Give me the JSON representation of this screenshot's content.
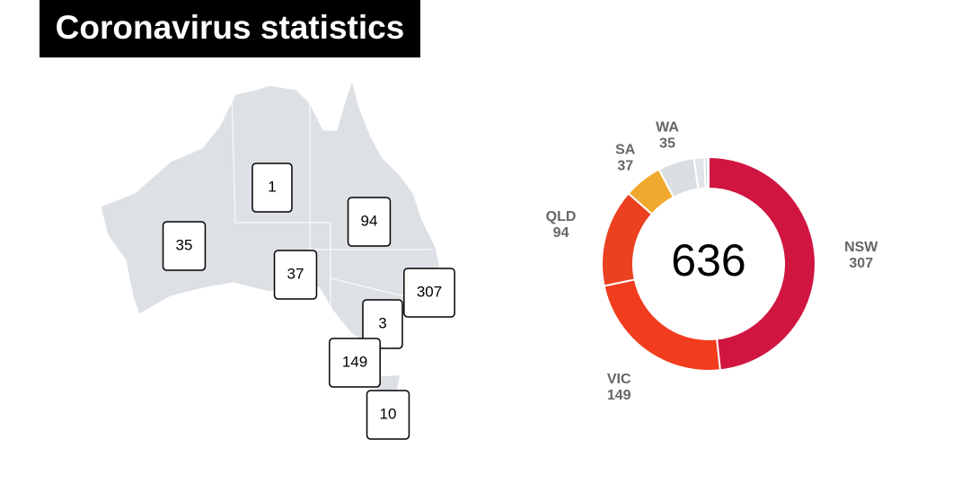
{
  "header": {
    "title": "Coronavirus statistics"
  },
  "map": {
    "labels": [
      1,
      35,
      94,
      37,
      307,
      3,
      149,
      10
    ]
  },
  "chart_data": {
    "type": "donut",
    "total": 636,
    "categories": [
      "NSW",
      "VIC",
      "QLD",
      "SA",
      "WA",
      null,
      null,
      null
    ],
    "values": [
      307,
      149,
      94,
      37,
      35,
      10,
      3,
      1
    ],
    "colors": [
      "#cf1540",
      "#f23c1e",
      "#ec4121",
      "#f0a92e",
      "#d9dee2",
      "#e2e5e8",
      "#d0d4d8",
      "#eceef0"
    ]
  }
}
